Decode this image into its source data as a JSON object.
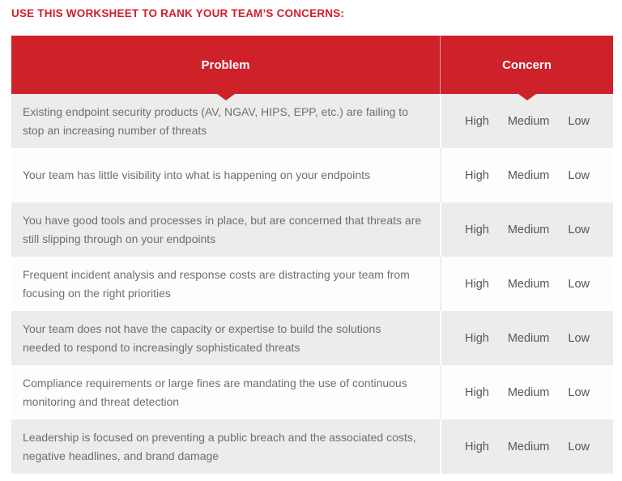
{
  "title": "USE THIS WORKSHEET TO RANK YOUR TEAM’S CONCERNS:",
  "colors": {
    "brand_red": "#ce212a",
    "row_gray": "#ececeb",
    "row_white": "#fdfdfd",
    "header_text": "#ffffff",
    "problem_text": "#6e6f71",
    "option_text": "#55575b"
  },
  "icons": {
    "column_pointer": "triangle-down"
  },
  "table": {
    "headers": {
      "problem": "Problem",
      "concern": "Concern"
    },
    "options": [
      "High",
      "Medium",
      "Low"
    ],
    "rows": [
      {
        "problem": "Existing endpoint security products (AV, NGAV, HIPS, EPP, etc.) are failing to\nstop an increasing number of threats"
      },
      {
        "problem": "Your team has little visibility into what is happening on your endpoints"
      },
      {
        "problem": "You have good tools and processes in place, but are concerned that threats are\nstill slipping through on your endpoints"
      },
      {
        "problem": "Frequent incident analysis and response costs are distracting your team from\nfocusing on the right priorities"
      },
      {
        "problem": "Your team does not have the capacity or expertise to build the solutions\nneeded to respond to increasingly sophisticated threats"
      },
      {
        "problem": "Compliance requirements or large fines are mandating the use of continuous\nmonitoring and threat detection"
      },
      {
        "problem": "Leadership is focused on preventing a public breach and the associated costs,\nnegative headlines, and brand damage"
      }
    ]
  }
}
